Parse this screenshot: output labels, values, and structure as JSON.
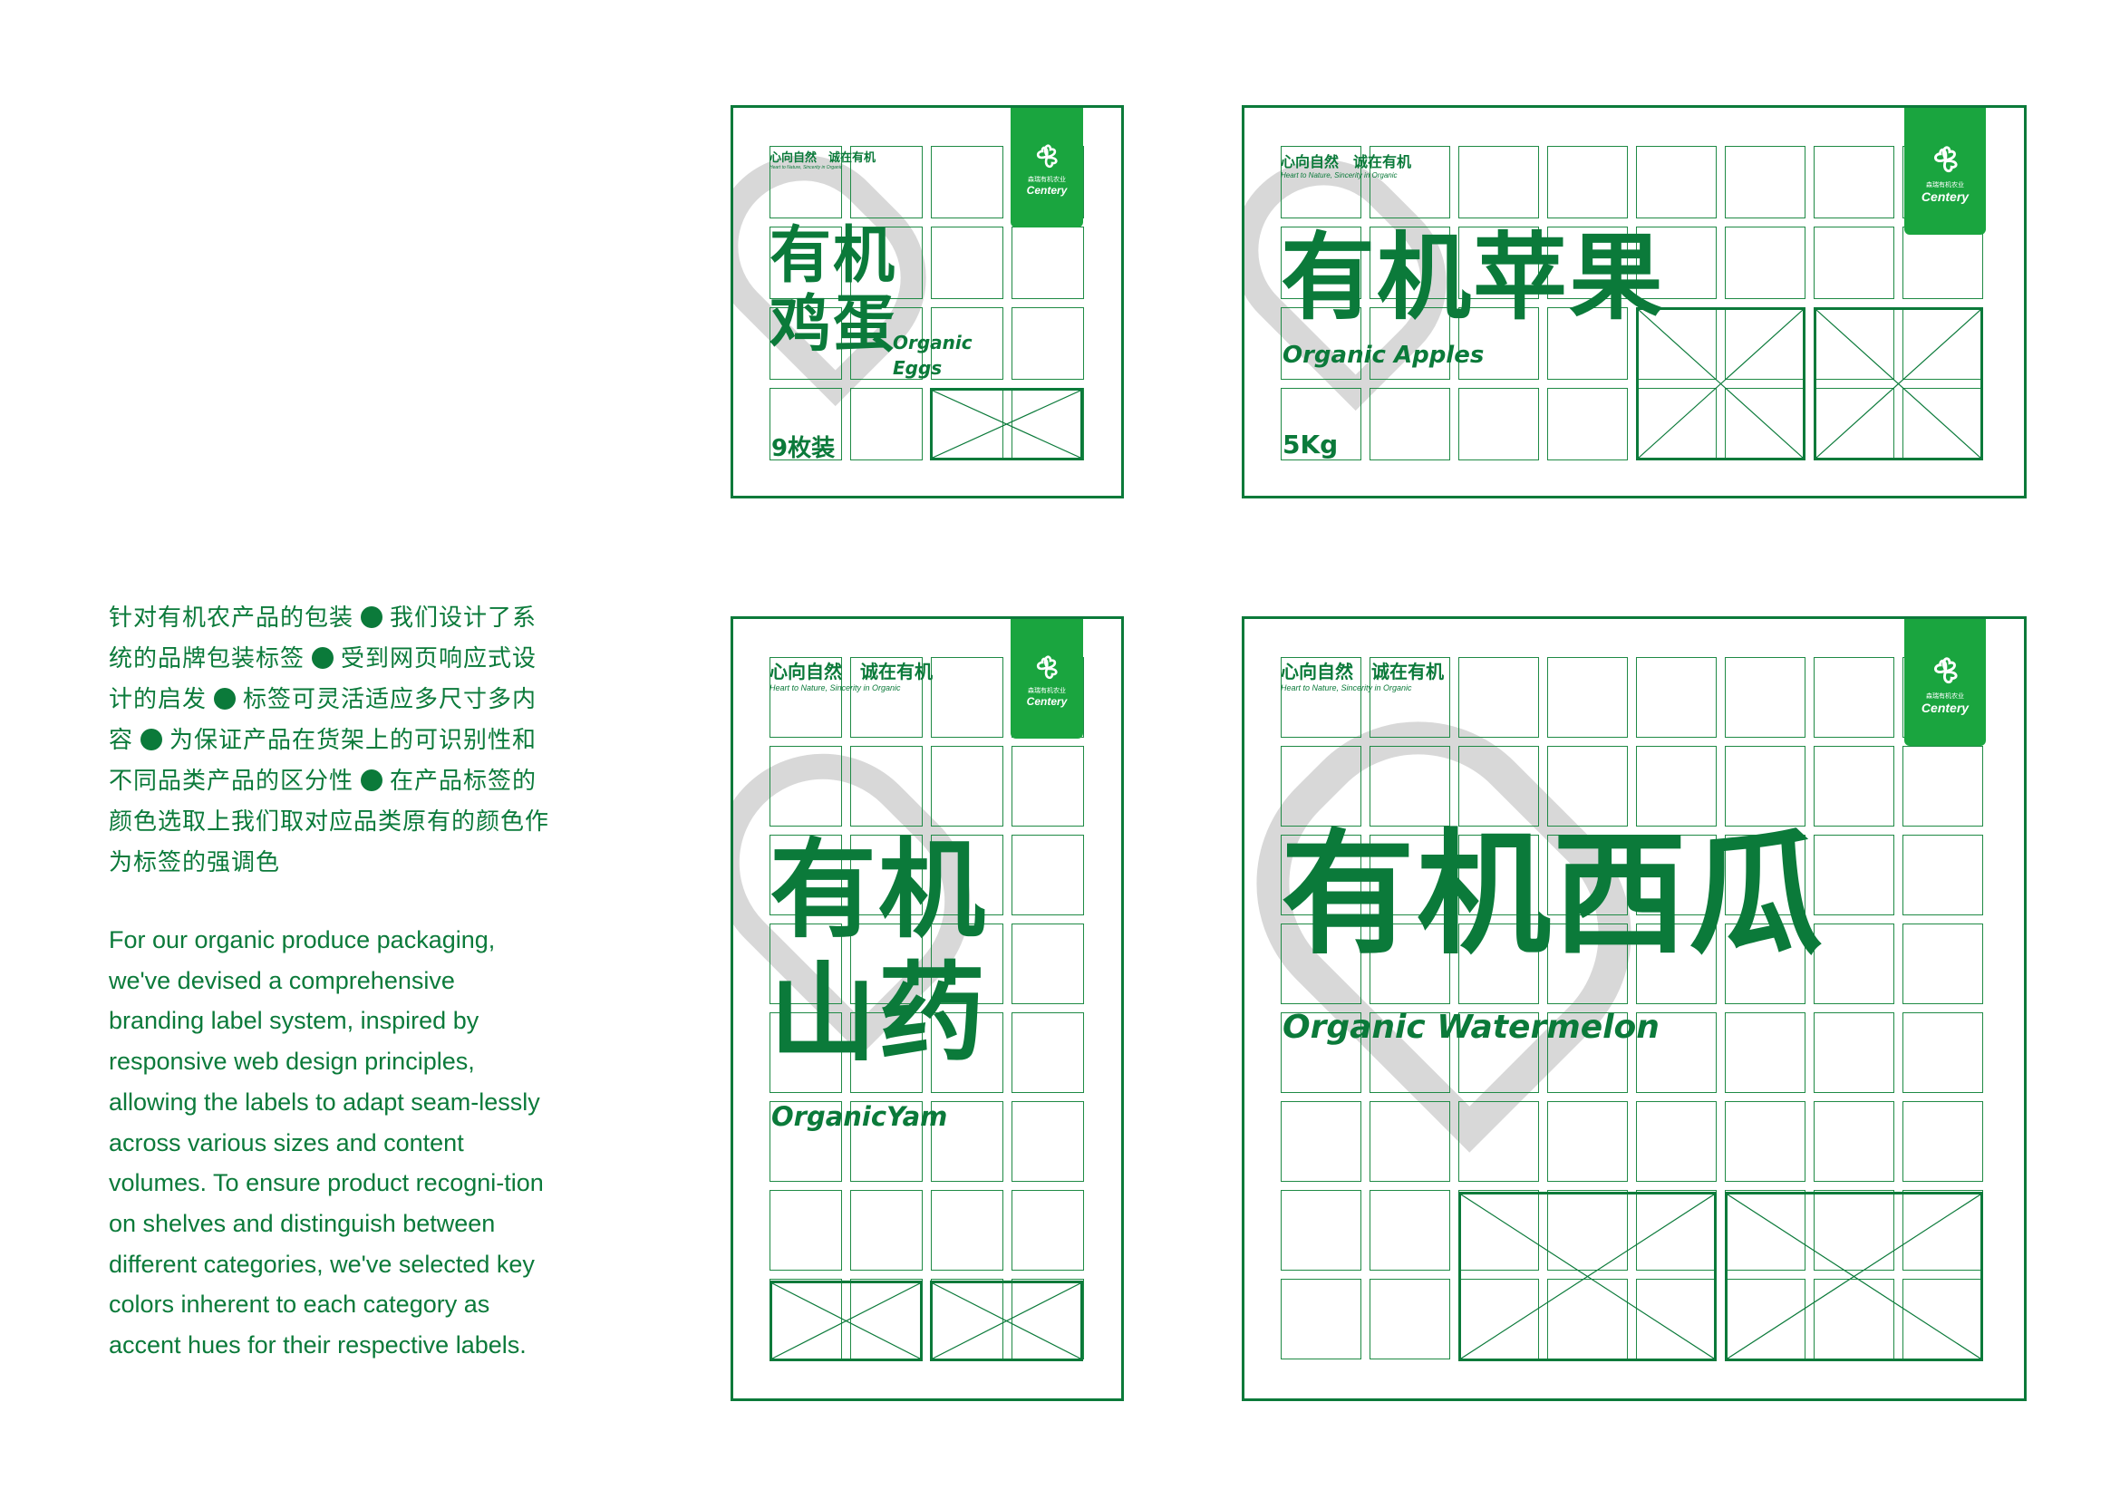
{
  "description": {
    "chinese_segments": [
      "针对有机农产品的包装",
      "我们设计了系统的品牌包装标签",
      "受到网页响应式设计的启发",
      "标签可灵活适应多尺寸多内容",
      "为保证产品在货架上的可识别性和不同品类产品的区分性",
      "在产品标签的颜色选取上我们取对应品类原有的颜色作为标签的强调色"
    ],
    "english": "For our organic produce packaging, we've devised a comprehensive branding label system, inspired by responsive web design principles, allowing the labels to adapt seam-lessly across various sizes and content volumes. To ensure product recogni-tion on shelves and distinguish between different categories, we've selected key colors inherent to each category as accent hues for their respective labels."
  },
  "brand": {
    "name": "Centery",
    "name_cn": "森瑞有机农业",
    "slogan_cn": "心向自然　诚在有机",
    "slogan_en": "Heart to Nature, Sincerity in Organic",
    "logo_icon": "three-leaf-clover-icon",
    "heart_motif": "heart-outline-watermark"
  },
  "colors": {
    "primary": "#0b7a3a",
    "logo_bg": "#1aa53f",
    "heart": "#d8d8d8",
    "grid": "#1f8a45"
  },
  "labels": [
    {
      "id": "eggs",
      "title_line1": "有机",
      "title_line2": "鸡蛋",
      "english": "Organic Eggs",
      "english_line1": "Organic",
      "english_line2": "Eggs",
      "quantity": "9枚装"
    },
    {
      "id": "apples",
      "title": "有机苹果",
      "english": "Organic Apples",
      "quantity": "5Kg"
    },
    {
      "id": "yam",
      "title_line1": "有机",
      "title_line2": "山药",
      "english": "OrganicYam"
    },
    {
      "id": "watermelon",
      "title": "有机西瓜",
      "english": "Organic Watermelon"
    }
  ]
}
